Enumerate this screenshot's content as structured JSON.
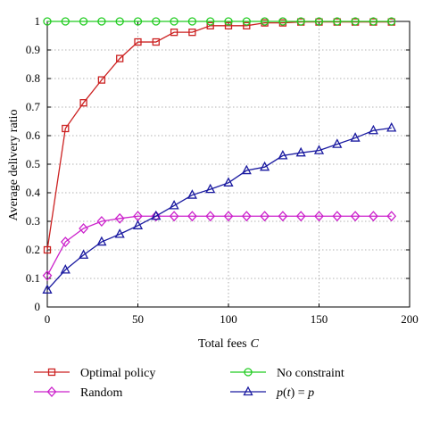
{
  "chart_data": {
    "type": "line",
    "xlabel": "Total fees",
    "xlabel_var": "C",
    "ylabel": "Average delivery ratio",
    "xlim": [
      0,
      200
    ],
    "ylim": [
      0,
      1
    ],
    "xticks": [
      "0",
      "50",
      "100",
      "150",
      "200"
    ],
    "yticks": [
      "0",
      "0.1",
      "0.2",
      "0.3",
      "0.4",
      "0.5",
      "0.6",
      "0.7",
      "0.8",
      "0.9",
      "1"
    ],
    "grid": true,
    "legend_position": "bottom",
    "series": [
      {
        "name": "Optimal policy",
        "color": "#cc2222",
        "marker": "square",
        "x": [
          0,
          10,
          20,
          30,
          40,
          50,
          60,
          70,
          80,
          90,
          100,
          110,
          120,
          130,
          140,
          150,
          160,
          170,
          180,
          190
        ],
        "y": [
          0.2,
          0.625,
          0.715,
          0.795,
          0.87,
          0.928,
          0.928,
          0.962,
          0.962,
          0.985,
          0.985,
          0.985,
          0.995,
          0.995,
          0.998,
          0.998,
          0.998,
          0.998,
          0.998,
          0.998
        ]
      },
      {
        "name": "No constraint",
        "color": "#22cc22",
        "marker": "circle",
        "x": [
          0,
          10,
          20,
          30,
          40,
          50,
          60,
          70,
          80,
          90,
          100,
          110,
          120,
          130,
          140,
          150,
          160,
          170,
          180,
          190
        ],
        "y": [
          1,
          1,
          1,
          1,
          1,
          1,
          1,
          1,
          1,
          1,
          1,
          1,
          1,
          1,
          1,
          1,
          1,
          1,
          1,
          1
        ]
      },
      {
        "name": "Random",
        "color": "#cc22cc",
        "marker": "diamond",
        "x": [
          0,
          10,
          20,
          30,
          40,
          50,
          60,
          70,
          80,
          90,
          100,
          110,
          120,
          130,
          140,
          150,
          160,
          170,
          180,
          190
        ],
        "y": [
          0.11,
          0.228,
          0.275,
          0.3,
          0.31,
          0.318,
          0.318,
          0.318,
          0.318,
          0.318,
          0.318,
          0.318,
          0.318,
          0.318,
          0.318,
          0.318,
          0.318,
          0.318,
          0.318,
          0.318
        ]
      },
      {
        "name": "p(t) = p",
        "color": "#1a1aa0",
        "marker": "triangle",
        "x": [
          0,
          10,
          20,
          30,
          40,
          50,
          60,
          70,
          80,
          90,
          100,
          110,
          120,
          130,
          140,
          150,
          160,
          170,
          180,
          190
        ],
        "y": [
          0.06,
          0.13,
          0.182,
          0.228,
          0.255,
          0.285,
          0.318,
          0.355,
          0.392,
          0.412,
          0.435,
          0.478,
          0.49,
          0.53,
          0.54,
          0.548,
          0.57,
          0.592,
          0.618,
          0.627
        ]
      }
    ]
  }
}
